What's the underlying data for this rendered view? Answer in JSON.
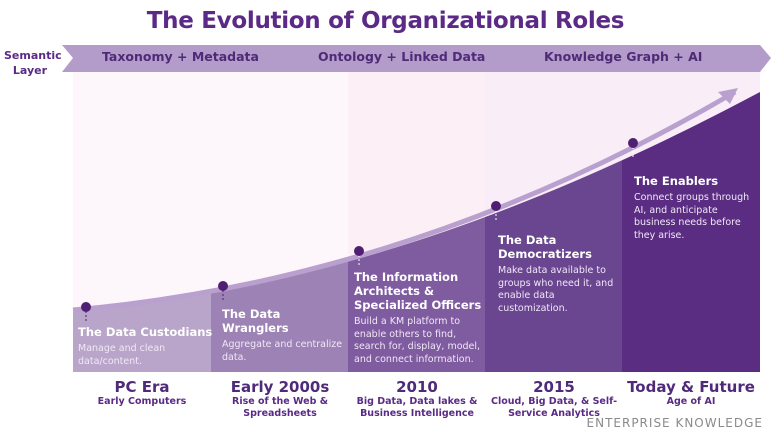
{
  "title": "The Evolution of Organizational Roles",
  "semantic_layer": {
    "label_line1": "Semantic",
    "label_line2": "Layer",
    "bands": [
      "Taxonomy + Metadata",
      "Ontology + Linked Data",
      "Knowledge Graph + AI"
    ]
  },
  "colors": {
    "title": "#5b2a86",
    "band": "#b39cc9",
    "columns": [
      "#b9a5c9",
      "#9d82b5",
      "#7f5b9f",
      "#6a4590",
      "#5a2d82"
    ],
    "curve": "#b9a0cf",
    "dot": "#4e1f72"
  },
  "roles": [
    {
      "title": "The Data Custodians",
      "desc": "Manage and clean data/content."
    },
    {
      "title": "The Data Wranglers",
      "desc": "Aggregate and centralize data."
    },
    {
      "title": "The Information Architects & Specialized Officers",
      "desc": "Build a KM platform to enable others to find, search for, display, model, and connect information."
    },
    {
      "title": "The Data Democratizers",
      "desc": "Make data available to groups who need it, and enable data customization."
    },
    {
      "title": "The Enablers",
      "desc": "Connect groups through AI, and anticipate business needs before they arise."
    }
  ],
  "eras": [
    {
      "name": "PC Era",
      "desc": "Early Computers"
    },
    {
      "name": "Early 2000s",
      "desc": "Rise of the Web & Spreadsheets"
    },
    {
      "name": "2010",
      "desc": "Big Data, Data lakes & Business Intelligence"
    },
    {
      "name": "2015",
      "desc": "Cloud, Big Data, & Self-Service Analytics"
    },
    {
      "name": "Today & Future",
      "desc": "Age of AI"
    }
  ],
  "brand": "ENTERPRISE KNOWLEDGE"
}
